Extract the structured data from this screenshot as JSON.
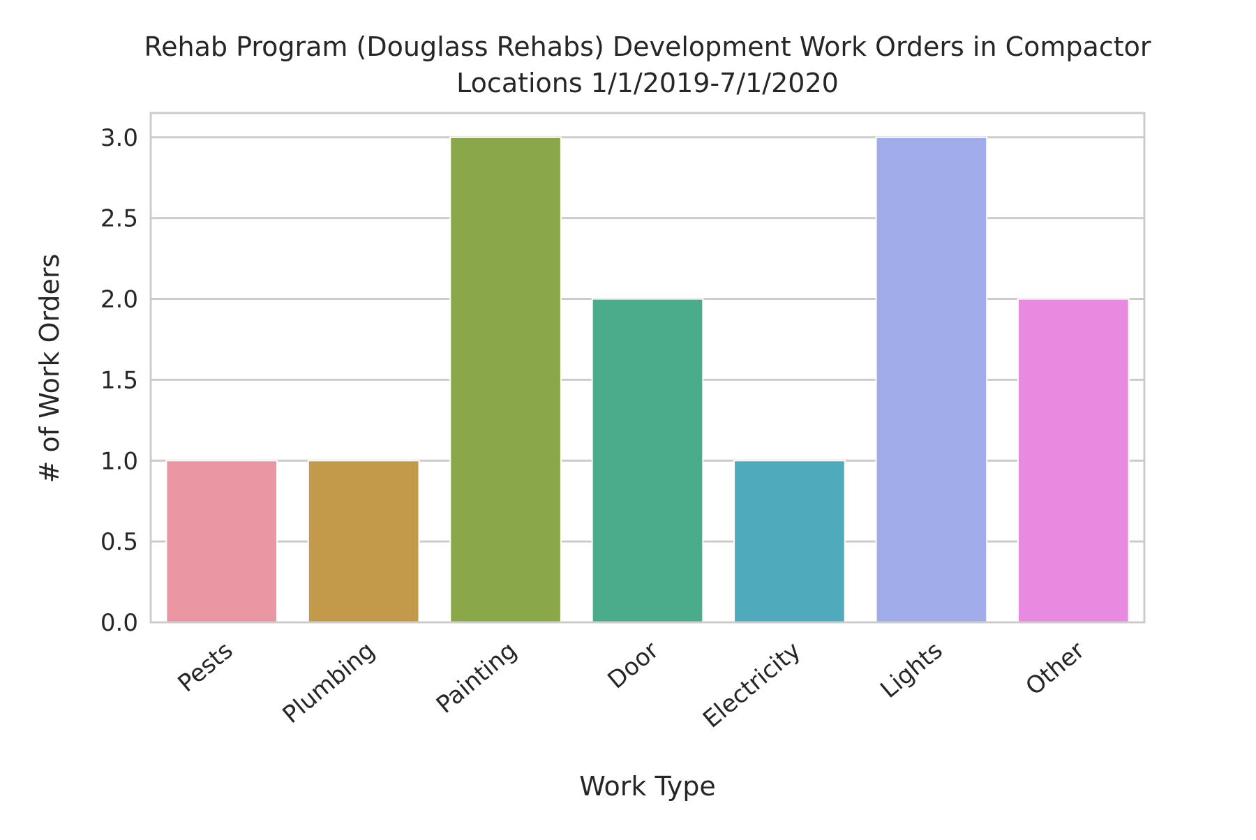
{
  "chart_data": {
    "type": "bar",
    "title": [
      "Rehab Program (Douglass Rehabs) Development Work Orders in Compactor",
      "Locations 1/1/2019-7/1/2020"
    ],
    "xlabel": "Work Type",
    "ylabel": "# of Work Orders",
    "categories": [
      "Pests",
      "Plumbing",
      "Painting",
      "Door",
      "Electricity",
      "Lights",
      "Other"
    ],
    "values": [
      1,
      1,
      3,
      2,
      1,
      3,
      2
    ],
    "colors": [
      "#ea96a3",
      "#c39a49",
      "#8aa84a",
      "#4bac8c",
      "#4fabbc",
      "#a1aceb",
      "#e88be0"
    ],
    "ylim": [
      0,
      3.15
    ],
    "yticks": [
      "0.0",
      "0.5",
      "1.0",
      "1.5",
      "2.0",
      "2.5",
      "3.0"
    ],
    "grid": true,
    "background": "#ffffff",
    "gridColor": "#cccccc"
  }
}
